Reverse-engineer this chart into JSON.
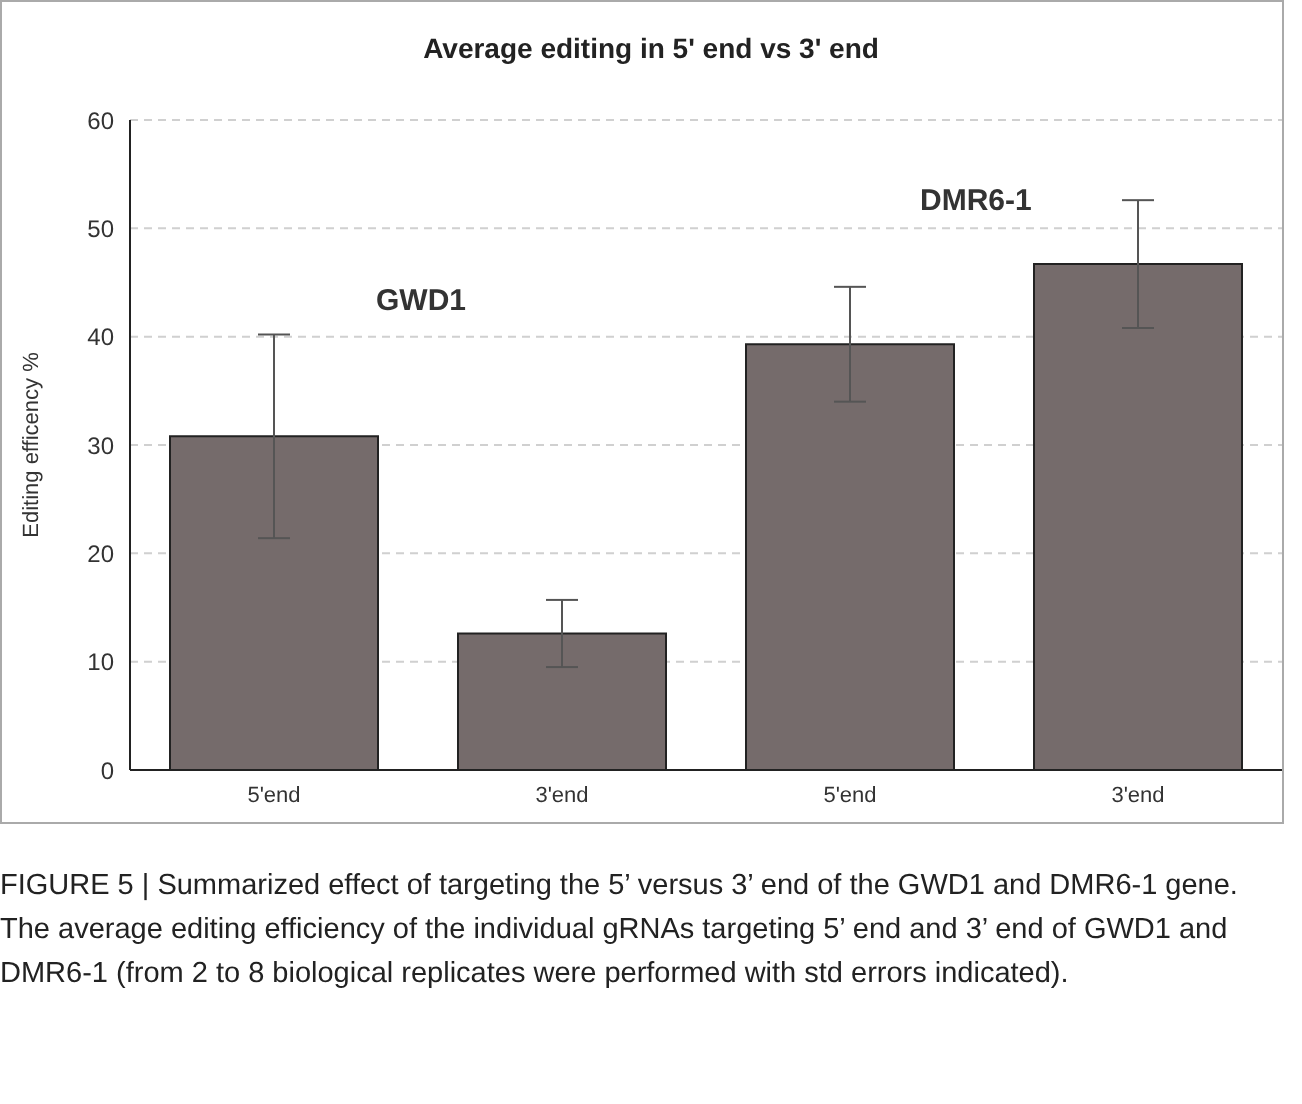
{
  "chart_data": {
    "type": "bar",
    "title": "Average editing in 5' end  vs 3' end",
    "ylabel": "Editing efficency %",
    "categories": [
      "5'end",
      "3'end",
      "5'end",
      "3'end"
    ],
    "values": [
      30.8,
      12.6,
      39.3,
      46.7
    ],
    "errors": [
      9.4,
      3.1,
      5.3,
      5.9
    ],
    "color": "#756b6b",
    "ylim": [
      0,
      60
    ],
    "yticks": [
      0,
      10,
      20,
      30,
      40,
      50,
      60
    ],
    "grid": "y",
    "annotations": [
      "GWD1",
      "DMR6-1",
      "FIGURE 5 | Summarized effect of targeting the 5’ versus 3’ end of the GWD1 and DMR6-1 gene. The average editing efficiency of the individual gRNAs targeting 5’ end and 3’ end of GWD1 and DMR6-1 (from 2 to 8 biological replicates were performed with std errors indicated)."
    ]
  }
}
